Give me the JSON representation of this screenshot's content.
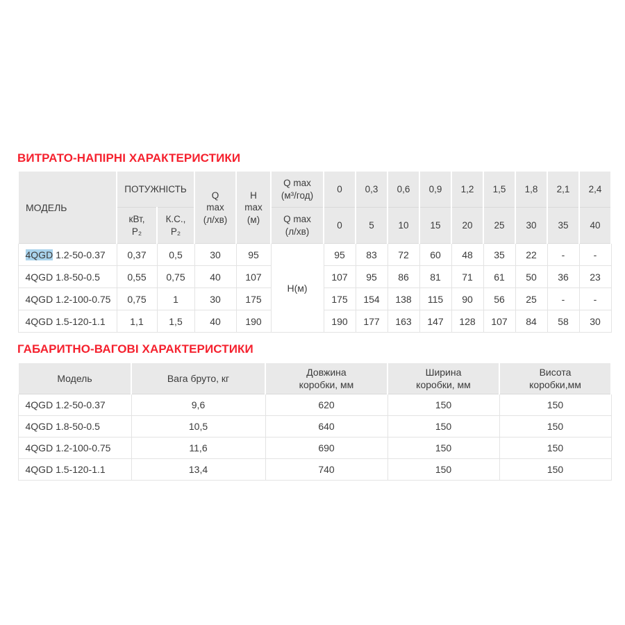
{
  "colors": {
    "title_red": "#f5212e",
    "header_bg": "#e9e9e9",
    "text": "#3b3b3b",
    "selection_highlight_blue": "#a9d3ec",
    "border_light": "#e3e3e3"
  },
  "section1": {
    "title": "ВИТРАТО-НАПІРНІ ХАРАКТЕРИСТИКИ",
    "table": {
      "headers": {
        "model": "МОДЕЛЬ",
        "power": "ПОТУЖНІСТЬ",
        "power_kwt": "кВт,\nP₂",
        "power_hp": "К.С.,\nP₂",
        "qmax": "Q\nmax\n(л/хв)",
        "hmax": "H\nmax\n(м)",
        "qmax_m3h": "Q max\n(м³/год)",
        "qmax_lmin": "Q max\n(л/хв)",
        "flow_m3h": [
          "0",
          "0,3",
          "0,6",
          "0,9",
          "1,2",
          "1,5",
          "1,8",
          "2,1",
          "2,4"
        ],
        "flow_lmin": [
          "0",
          "5",
          "10",
          "15",
          "20",
          "25",
          "30",
          "35",
          "40"
        ]
      },
      "head_span_label": "Н(м)",
      "rows": [
        {
          "model_highlight": "4QGD",
          "model_rest": " 1.2-50-0.37",
          "kwt": "0,37",
          "hp": "0,5",
          "qmax": "30",
          "hmax": "95",
          "heads": [
            "95",
            "83",
            "72",
            "60",
            "48",
            "35",
            "22",
            "-",
            "-"
          ]
        },
        {
          "model": "4QGD 1.8-50-0.5",
          "kwt": "0,55",
          "hp": "0,75",
          "qmax": "40",
          "hmax": "107",
          "heads": [
            "107",
            "95",
            "86",
            "81",
            "71",
            "61",
            "50",
            "36",
            "23"
          ]
        },
        {
          "model": "4QGD 1.2-100-0.75",
          "kwt": "0,75",
          "hp": "1",
          "qmax": "30",
          "hmax": "175",
          "heads": [
            "175",
            "154",
            "138",
            "115",
            "90",
            "56",
            "25",
            "-",
            "-"
          ]
        },
        {
          "model": "4QGD 1.5-120-1.1",
          "kwt": "1,1",
          "hp": "1,5",
          "qmax": "40",
          "hmax": "190",
          "heads": [
            "190",
            "177",
            "163",
            "147",
            "128",
            "107",
            "84",
            "58",
            "30"
          ]
        }
      ]
    }
  },
  "section2": {
    "title": "ГАБАРИТНО-ВАГОВІ ХАРАКТЕРИСТИКИ",
    "table": {
      "headers": [
        "Модель",
        "Вага бруто, кг",
        "Довжина\nкоробки, мм",
        "Ширина\nкоробки, мм",
        "Висота\nкоробки,мм"
      ],
      "rows": [
        [
          "4QGD 1.2-50-0.37",
          "9,6",
          "620",
          "150",
          "150"
        ],
        [
          "4QGD 1.8-50-0.5",
          "10,5",
          "640",
          "150",
          "150"
        ],
        [
          "4QGD 1.2-100-0.75",
          "11,6",
          "690",
          "150",
          "150"
        ],
        [
          "4QGD 1.5-120-1.1",
          "13,4",
          "740",
          "150",
          "150"
        ]
      ]
    }
  }
}
